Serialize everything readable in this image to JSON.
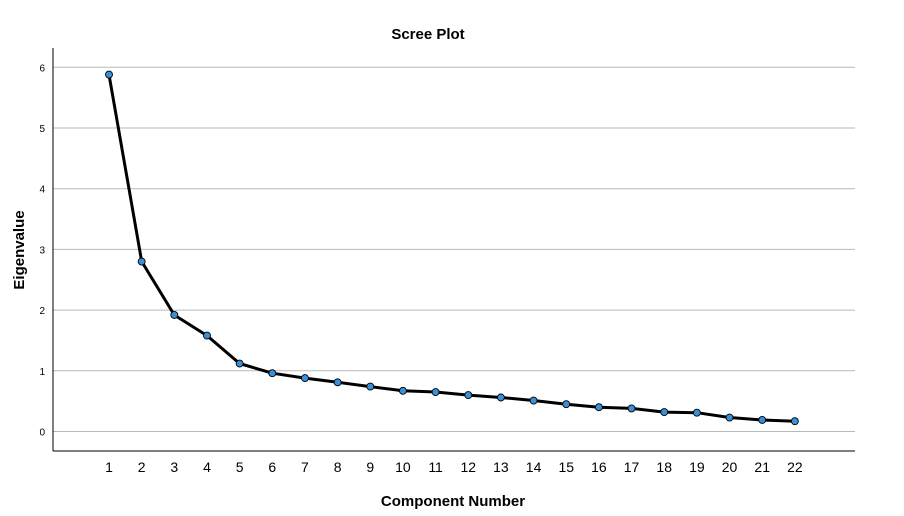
{
  "chart_data": {
    "type": "line",
    "title": "Scree Plot",
    "xlabel": "Component Number",
    "ylabel": "Eigenvalue",
    "x": [
      1,
      2,
      3,
      4,
      5,
      6,
      7,
      8,
      9,
      10,
      11,
      12,
      13,
      14,
      15,
      16,
      17,
      18,
      19,
      20,
      21,
      22
    ],
    "x_tick_labels": [
      "1",
      "2",
      "3",
      "4",
      "5",
      "6",
      "7",
      "8",
      "9",
      "10",
      "11",
      "12",
      "13",
      "14",
      "15",
      "16",
      "17",
      "18",
      "19",
      "20",
      "21",
      "22"
    ],
    "series": [
      {
        "values": [
          5.88,
          2.8,
          1.92,
          1.58,
          1.12,
          0.96,
          0.88,
          0.81,
          0.74,
          0.67,
          0.65,
          0.6,
          0.56,
          0.51,
          0.45,
          0.4,
          0.38,
          0.32,
          0.31,
          0.23,
          0.19,
          0.17
        ],
        "line_color": "#000000",
        "marker_color": "#3a8fd9"
      }
    ],
    "y_ticks": [
      0,
      1,
      2,
      3,
      4,
      5,
      6
    ],
    "y_tick_labels": [
      "0",
      "1",
      "2",
      "3",
      "4",
      "5",
      "6"
    ],
    "ylim": [
      -0.3,
      6.3
    ],
    "grid": "horizontal"
  }
}
